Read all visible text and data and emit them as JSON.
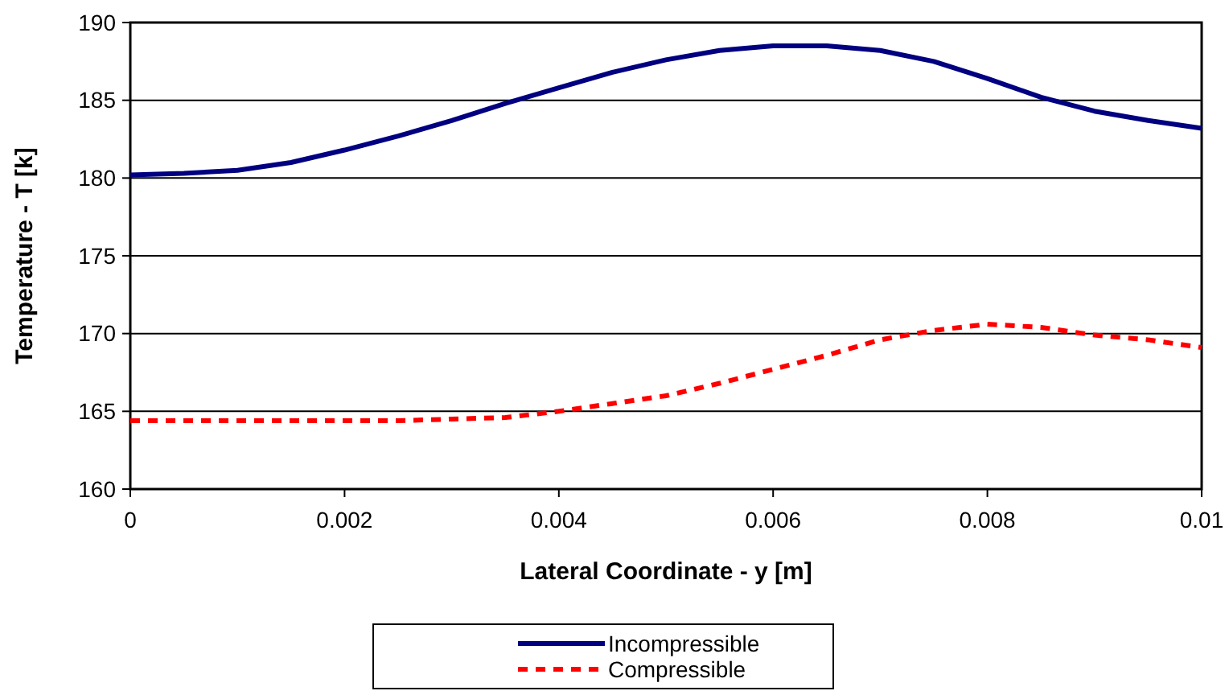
{
  "chart_data": {
    "type": "line",
    "xlabel": "Lateral Coordinate - y [m]",
    "ylabel": "Temperature - T [k]",
    "x": [
      0,
      0.0005,
      0.001,
      0.0015,
      0.002,
      0.0025,
      0.003,
      0.0035,
      0.004,
      0.0045,
      0.005,
      0.0055,
      0.006,
      0.0065,
      0.007,
      0.0075,
      0.008,
      0.0085,
      0.009,
      0.0095,
      0.01
    ],
    "series": [
      {
        "name": "Incompressible",
        "color": "#000080",
        "line_style": "solid",
        "values": [
          180.2,
          180.3,
          180.5,
          181.0,
          181.8,
          182.7,
          183.7,
          184.8,
          185.8,
          186.8,
          187.6,
          188.2,
          188.5,
          188.5,
          188.2,
          187.5,
          186.4,
          185.2,
          184.3,
          183.7,
          183.2
        ]
      },
      {
        "name": "Compressible",
        "color": "#ff0000",
        "line_style": "dashed",
        "values": [
          164.4,
          164.4,
          164.4,
          164.4,
          164.4,
          164.4,
          164.5,
          164.6,
          165.0,
          165.5,
          166.0,
          166.8,
          167.7,
          168.6,
          169.6,
          170.2,
          170.6,
          170.4,
          169.9,
          169.6,
          169.1
        ]
      }
    ],
    "xlim": [
      0,
      0.01
    ],
    "xticks": [
      0,
      0.002,
      0.004,
      0.006,
      0.008,
      0.01
    ],
    "ylim": [
      160,
      190
    ],
    "yticks": [
      160,
      165,
      170,
      175,
      180,
      185,
      190
    ],
    "grid": "y",
    "legend": "bottom",
    "marker": "none"
  }
}
